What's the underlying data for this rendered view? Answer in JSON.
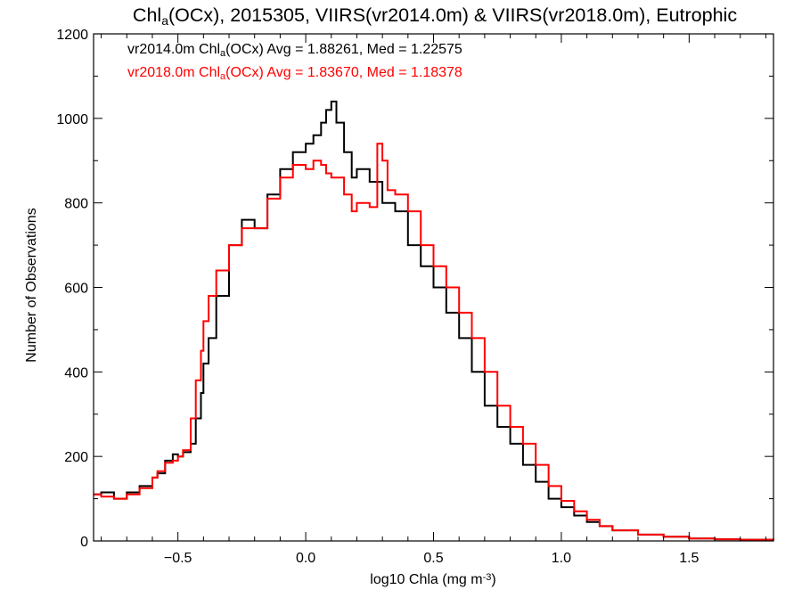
{
  "chart_data": {
    "type": "line",
    "step": true,
    "title": {
      "parts": [
        {
          "text": "Chl",
          "sub": false
        },
        {
          "text": "a",
          "sub": true
        },
        {
          "text": "(OCx), 2015305, VIIRS(vr2014.0m) & VIIRS(vr2018.0m), Eutrophic",
          "sub": false
        }
      ]
    },
    "xlabel": {
      "parts": [
        {
          "text": "log10 Chla (mg m",
          "sup": false
        },
        {
          "text": "-3",
          "sup": true
        },
        {
          "text": ")",
          "sup": false
        }
      ]
    },
    "ylabel": "Number of Observations",
    "xlim": [
      -0.83,
      1.83
    ],
    "ylim": [
      0,
      1200
    ],
    "xticks": [
      -0.5,
      0.0,
      0.5,
      1.0,
      1.5
    ],
    "xtick_labels": [
      "−0.5",
      "0.0",
      "0.5",
      "1.0",
      "1.5"
    ],
    "yticks": [
      0,
      200,
      400,
      600,
      800,
      1000,
      1200
    ],
    "ytick_labels": [
      "0",
      "200",
      "400",
      "600",
      "800",
      "1000",
      "1200"
    ],
    "grid": false,
    "legend_position": "top-left",
    "legend": [
      {
        "series": "vr2014.0m",
        "color": "#000000",
        "parts": [
          {
            "text": "vr2014.0m Chl",
            "sub": false
          },
          {
            "text": "a",
            "sub": true
          },
          {
            "text": "(OCx) Avg = 1.88261, Med = 1.22575",
            "sub": false
          }
        ]
      },
      {
        "series": "vr2018.0m",
        "color": "#ff0000",
        "parts": [
          {
            "text": "vr2018.0m Chl",
            "sub": false
          },
          {
            "text": "a",
            "sub": true
          },
          {
            "text": "(OCx) Avg = 1.83670, Med = 1.18378",
            "sub": false
          }
        ]
      }
    ],
    "series": [
      {
        "name": "vr2014.0m",
        "color": "#000000",
        "x": [
          -0.83,
          -0.8,
          -0.75,
          -0.7,
          -0.65,
          -0.6,
          -0.58,
          -0.55,
          -0.52,
          -0.5,
          -0.48,
          -0.45,
          -0.43,
          -0.41,
          -0.4,
          -0.38,
          -0.35,
          -0.3,
          -0.25,
          -0.2,
          -0.15,
          -0.1,
          -0.05,
          0.0,
          0.03,
          0.06,
          0.08,
          0.1,
          0.12,
          0.15,
          0.18,
          0.2,
          0.25,
          0.3,
          0.35,
          0.4,
          0.45,
          0.5,
          0.55,
          0.6,
          0.65,
          0.7,
          0.75,
          0.8,
          0.85,
          0.9,
          0.95,
          1.0,
          1.05,
          1.1,
          1.15,
          1.2,
          1.3,
          1.4,
          1.5,
          1.6,
          1.7,
          1.83
        ],
        "y": [
          110,
          115,
          100,
          115,
          130,
          150,
          160,
          190,
          205,
          200,
          210,
          230,
          290,
          350,
          420,
          480,
          580,
          700,
          760,
          740,
          820,
          880,
          920,
          940,
          960,
          990,
          1020,
          1040,
          990,
          920,
          860,
          880,
          850,
          800,
          780,
          700,
          650,
          600,
          540,
          480,
          400,
          320,
          270,
          230,
          180,
          140,
          100,
          80,
          60,
          45,
          35,
          25,
          15,
          10,
          6,
          4,
          3,
          2
        ]
      },
      {
        "name": "vr2018.0m",
        "color": "#ff0000",
        "x": [
          -0.83,
          -0.8,
          -0.75,
          -0.7,
          -0.65,
          -0.6,
          -0.58,
          -0.55,
          -0.52,
          -0.5,
          -0.48,
          -0.45,
          -0.43,
          -0.41,
          -0.4,
          -0.38,
          -0.35,
          -0.3,
          -0.25,
          -0.2,
          -0.15,
          -0.1,
          -0.05,
          0.0,
          0.03,
          0.06,
          0.08,
          0.1,
          0.12,
          0.15,
          0.18,
          0.2,
          0.25,
          0.28,
          0.3,
          0.32,
          0.35,
          0.4,
          0.45,
          0.5,
          0.55,
          0.6,
          0.65,
          0.7,
          0.75,
          0.8,
          0.85,
          0.9,
          0.95,
          1.0,
          1.05,
          1.1,
          1.15,
          1.2,
          1.3,
          1.4,
          1.5,
          1.6,
          1.7,
          1.83
        ],
        "y": [
          110,
          105,
          100,
          110,
          125,
          150,
          165,
          185,
          190,
          200,
          215,
          290,
          380,
          450,
          520,
          580,
          640,
          700,
          740,
          740,
          810,
          860,
          890,
          880,
          900,
          890,
          870,
          860,
          860,
          820,
          780,
          800,
          790,
          940,
          900,
          830,
          820,
          780,
          700,
          650,
          600,
          540,
          480,
          400,
          320,
          270,
          230,
          180,
          130,
          95,
          70,
          50,
          35,
          25,
          15,
          10,
          6,
          4,
          3,
          2
        ]
      }
    ]
  }
}
